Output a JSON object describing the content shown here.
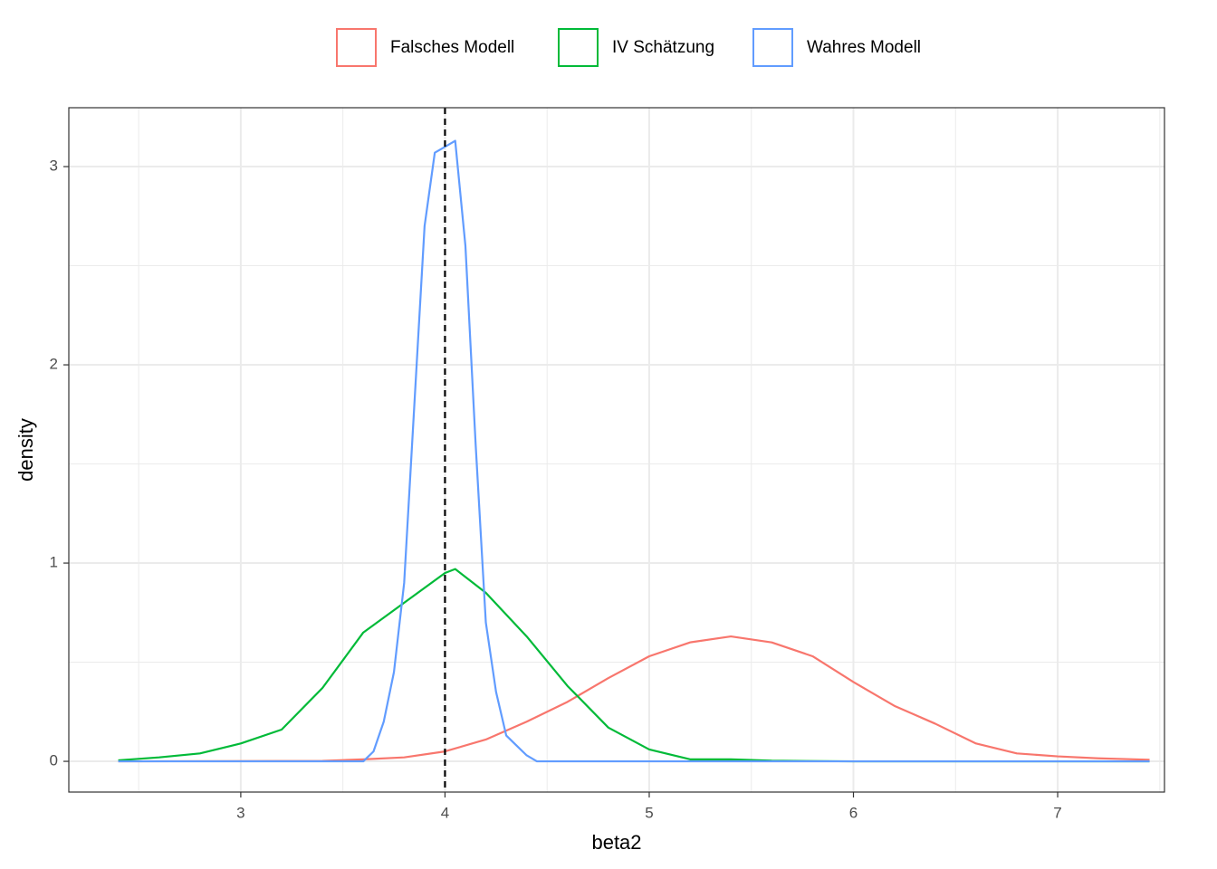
{
  "chart_data": {
    "type": "line",
    "xlabel": "beta2",
    "ylabel": "density",
    "xlim": [
      2.158,
      7.523
    ],
    "ylim": [
      -0.155,
      3.297
    ],
    "xticks": [
      3,
      4,
      5,
      6,
      7
    ],
    "yticks": [
      0,
      1,
      2,
      3
    ],
    "grid": true,
    "legend": "top",
    "vline": 4,
    "series": [
      {
        "name": "Falsches Modell",
        "color": "#F8766D",
        "x": [
          2.4,
          3.4,
          3.6,
          3.8,
          4.0,
          4.2,
          4.4,
          4.6,
          4.8,
          5.0,
          5.2,
          5.4,
          5.6,
          5.8,
          6.0,
          6.2,
          6.4,
          6.6,
          6.8,
          7.0,
          7.2,
          7.45
        ],
        "values": [
          0,
          0.002,
          0.01,
          0.02,
          0.05,
          0.11,
          0.2,
          0.3,
          0.42,
          0.53,
          0.6,
          0.63,
          0.6,
          0.53,
          0.4,
          0.28,
          0.19,
          0.09,
          0.04,
          0.025,
          0.015,
          0.008
        ]
      },
      {
        "name": "IV Schätzung",
        "color": "#00BA38",
        "x": [
          2.4,
          2.6,
          2.8,
          3.0,
          3.2,
          3.4,
          3.6,
          3.8,
          4.0,
          4.05,
          4.2,
          4.4,
          4.6,
          4.8,
          5.0,
          5.2,
          5.4,
          5.6,
          6.0,
          7.45
        ],
        "values": [
          0.005,
          0.02,
          0.04,
          0.09,
          0.16,
          0.37,
          0.65,
          0.8,
          0.95,
          0.97,
          0.85,
          0.63,
          0.38,
          0.17,
          0.06,
          0.01,
          0.01,
          0.003,
          0,
          0
        ]
      },
      {
        "name": "Wahres Modell",
        "color": "#619CFF",
        "x": [
          2.4,
          3.5,
          3.6,
          3.65,
          3.7,
          3.75,
          3.8,
          3.85,
          3.9,
          3.95,
          4.0,
          4.05,
          4.1,
          4.15,
          4.2,
          4.25,
          4.3,
          4.35,
          4.4,
          4.45,
          4.5,
          7.45
        ],
        "values": [
          0,
          0,
          0,
          0.05,
          0.2,
          0.45,
          0.9,
          1.8,
          2.7,
          3.07,
          3.1,
          3.13,
          2.6,
          1.6,
          0.7,
          0.35,
          0.13,
          0.08,
          0.03,
          0,
          0,
          0
        ]
      }
    ]
  }
}
